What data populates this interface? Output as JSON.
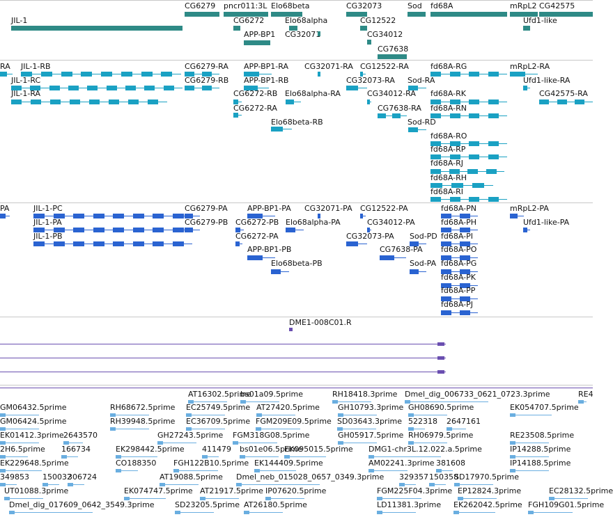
{
  "colors": {
    "gene": "#2e8a86",
    "transcript_ra": "#1aa1c3",
    "transcript_pa": "#2a63d1",
    "dme": "#6a4fb0",
    "est": "#6aaee0"
  },
  "genes": [
    "JIL-1",
    "CG6279",
    "pncr011:3L",
    "Elo68beta",
    "CG6272",
    "Elo68alpha",
    "APP-BP1",
    "CG32073",
    "CG12522",
    "CG32071",
    "CG34012",
    "CG7638",
    "Sod",
    "fd68A",
    "mRpL2",
    "CG42575",
    "Ufd1-like"
  ],
  "transcripts_r": [
    "RA",
    "JIL-1-RB",
    "JIL-1-RC",
    "JIL-1-RA",
    "CG6279-RA",
    "CG6279-RB",
    "APP-BP1-RA",
    "APP-BP1-RB",
    "CG6272-RB",
    "CG6272-RA",
    "Elo68alpha-RA",
    "Elo68beta-RB",
    "CG32071-RA",
    "CG12522-RA",
    "CG32073-RA",
    "CG34012-RA",
    "CG7638-RA",
    "Sod-RA",
    "Sod-RD",
    "fd68A-RG",
    "fd68A-RK",
    "fd68A-RN",
    "fd68A-RO",
    "fd68A-RP",
    "fd68A-RJ",
    "fd68A-RH",
    "fd68A-RI",
    "mRpL2-RA",
    "Ufd1-like-RA",
    "CG42575-RA"
  ],
  "transcripts_p": [
    "PA",
    "JIL-1-PC",
    "JIL-1-PA",
    "JIL-1-PB",
    "CG6279-PA",
    "CG6279-PB",
    "APP-BP1-PA",
    "CG6272-PB",
    "CG6272-PA",
    "APP-BP1-PB",
    "Elo68alpha-PA",
    "Elo68beta-PB",
    "CG32071-PA",
    "CG12522-PA",
    "CG34012-PA",
    "CG32073-PA",
    "CG7638-PA",
    "Sod-PD",
    "Sod-PA",
    "fd68A-PN",
    "fd68A-PH",
    "fd68A-PI",
    "fd68A-PO",
    "fd68A-PG",
    "fd68A-PK",
    "fd68A-PP",
    "fd68A-PJ",
    "mRpL2-PA",
    "Ufd1-like-PA"
  ],
  "dme": [
    "DME1-008C01.R"
  ],
  "ests": [
    "AT16302.5prime",
    "bs01a09.5prime",
    "RH18418.3prime",
    "Dmel_dig_006733_0621_0723.3prime",
    "RE4",
    "GM06432.5prime",
    "RH68672.5prime",
    "EC25749.5prime",
    "AT27420.5prime",
    "GH10793.3prime",
    "GH08690.5prime",
    "EK054707.5prime",
    "GM06424.5prime",
    "RH39948.5prime",
    "EC36709.5prime",
    "FGM209E09.5prime",
    "SD03643.3prime",
    "522318",
    "2647161",
    "EK01412.3prime",
    "2643570",
    "GH27243.5prime",
    "FGM318G08.5prime",
    "GH05917.5prime",
    "RH06979.5prime",
    "RE23508.5prime",
    "2H6.5prime",
    "166734",
    "EK298442.5prime",
    "411479",
    "bs01e06.5prime",
    "EK095015.5prime",
    "DMG1-chr3L.12.022.a.5prime",
    "IP14288.5prime",
    "EK229648.5prime",
    "CO188350",
    "FGH122B10.5prime",
    "EK144409.5prime",
    "AM02241.3prime",
    "381608",
    "IP14188.5prime",
    "349853",
    "150032",
    "306724",
    "AT19088.5prime",
    "Dmel_neb_015028_0657_0349.3prime",
    "329357",
    "150358",
    "SD17970.5prime",
    "UT01088.3prime",
    "EK074747.5prime",
    "AT21917.5prime",
    "IP07620.5prime",
    "FGM225F04.3prime",
    "EP12824.3prime",
    "EC28132.5prime",
    "Dmel_dig_017609_0642_3549.3prime",
    "SD23205.5prime",
    "AT26180.5prime",
    "LD11381.3prime",
    "EK262042.5prime",
    "FGH109G01.5prime"
  ]
}
